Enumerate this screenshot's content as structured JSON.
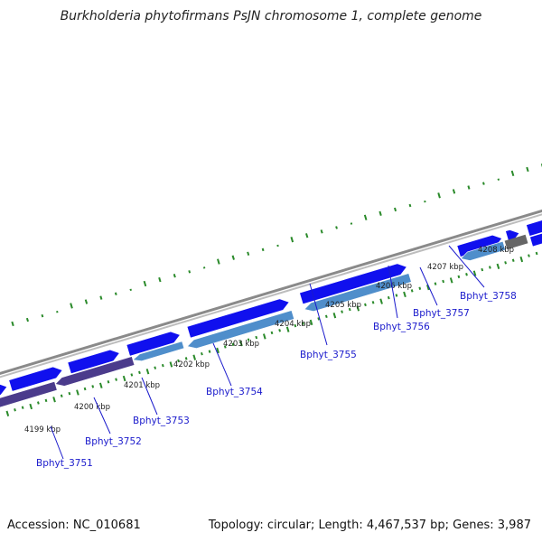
{
  "title": "Burkholderia phytofirmans PsJN chromosome 1, complete genome",
  "footer": {
    "accession": "Accession: NC_010681",
    "summary": "Topology: circular; Length: 4,467,537 bp; Genes: 3,987"
  },
  "colors": {
    "forward_cds": "#1010ee",
    "reverse_cds": "#4f8ecb",
    "reverse_cds_dark": "#4b3b8c",
    "other_feature": "#666666",
    "backbone": "#8a8a8a",
    "gc_skew_ticks": "#2a8a2a",
    "gene_label": "#1a1acc"
  },
  "scale_ticks": [
    {
      "label": "4199 kbp"
    },
    {
      "label": "4200 kbp"
    },
    {
      "label": "4201 kbp"
    },
    {
      "label": "4202 kbp"
    },
    {
      "label": "4203 kbp"
    },
    {
      "label": "4204 kbp"
    },
    {
      "label": "4205 kbp"
    },
    {
      "label": "4206 kbp"
    },
    {
      "label": "4207 kbp"
    },
    {
      "label": "4208 kbp"
    }
  ],
  "gene_labels": [
    {
      "name": "Bphyt_3751"
    },
    {
      "name": "Bphyt_3752"
    },
    {
      "name": "Bphyt_3753"
    },
    {
      "name": "Bphyt_3754"
    },
    {
      "name": "Bphyt_3755"
    },
    {
      "name": "Bphyt_3756"
    },
    {
      "name": "Bphyt_3757"
    },
    {
      "name": "Bphyt_3758"
    }
  ]
}
